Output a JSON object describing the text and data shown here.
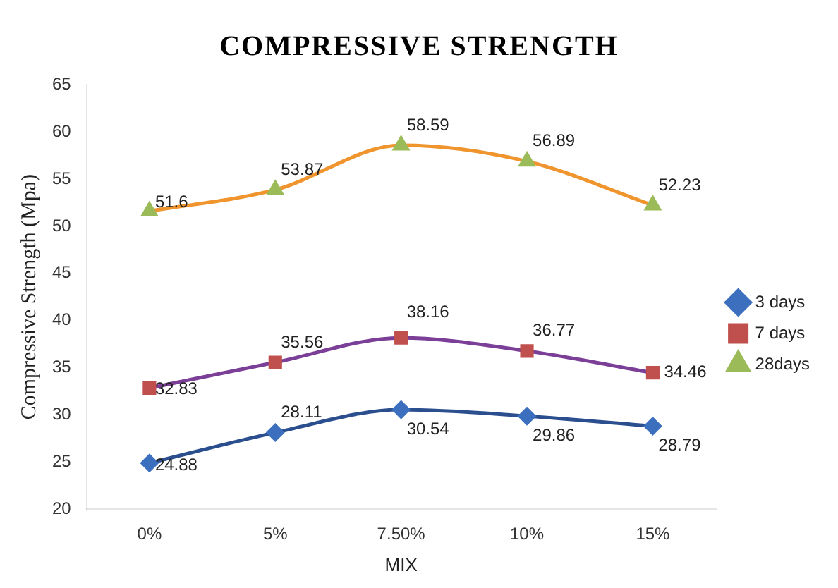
{
  "chart_data": {
    "type": "line",
    "title": "COMPRESSIVE STRENGTH",
    "xlabel": "MIX",
    "ylabel": "Compressive Strength (Mpa)",
    "categories": [
      "0%",
      "5%",
      "7.50%",
      "10%",
      "15%"
    ],
    "series": [
      {
        "name": "3 days",
        "color": "#2b4f8e",
        "colors": [
          "#3c6fbe",
          "#3c6fbe",
          "#3c6fbe",
          "#3c6fbe",
          "#3c6fbe"
        ],
        "marker": "diamond",
        "values": [
          24.88,
          28.11,
          30.54,
          29.86,
          28.79
        ]
      },
      {
        "name": "7 days",
        "color": "#7b3f98",
        "colors": [
          "#c0504d",
          "#c0504d",
          "#c0504d",
          "#c0504d",
          "#c0504d"
        ],
        "marker": "square",
        "values": [
          32.83,
          35.56,
          38.16,
          36.77,
          34.46
        ]
      },
      {
        "name": "28days",
        "color": "#f0952e",
        "colors": [
          "#9bbb59",
          "#9bbb59",
          "#9bbb59",
          "#9bbb59",
          "#9bbb59"
        ],
        "marker": "triangle",
        "values": [
          51.6,
          53.87,
          58.59,
          56.89,
          52.23
        ]
      }
    ],
    "ylim": [
      20,
      65
    ],
    "yticks": [
      20,
      25,
      30,
      35,
      40,
      45,
      50,
      55,
      60,
      65
    ],
    "grid": false,
    "legend": "right",
    "data_labels": true
  }
}
